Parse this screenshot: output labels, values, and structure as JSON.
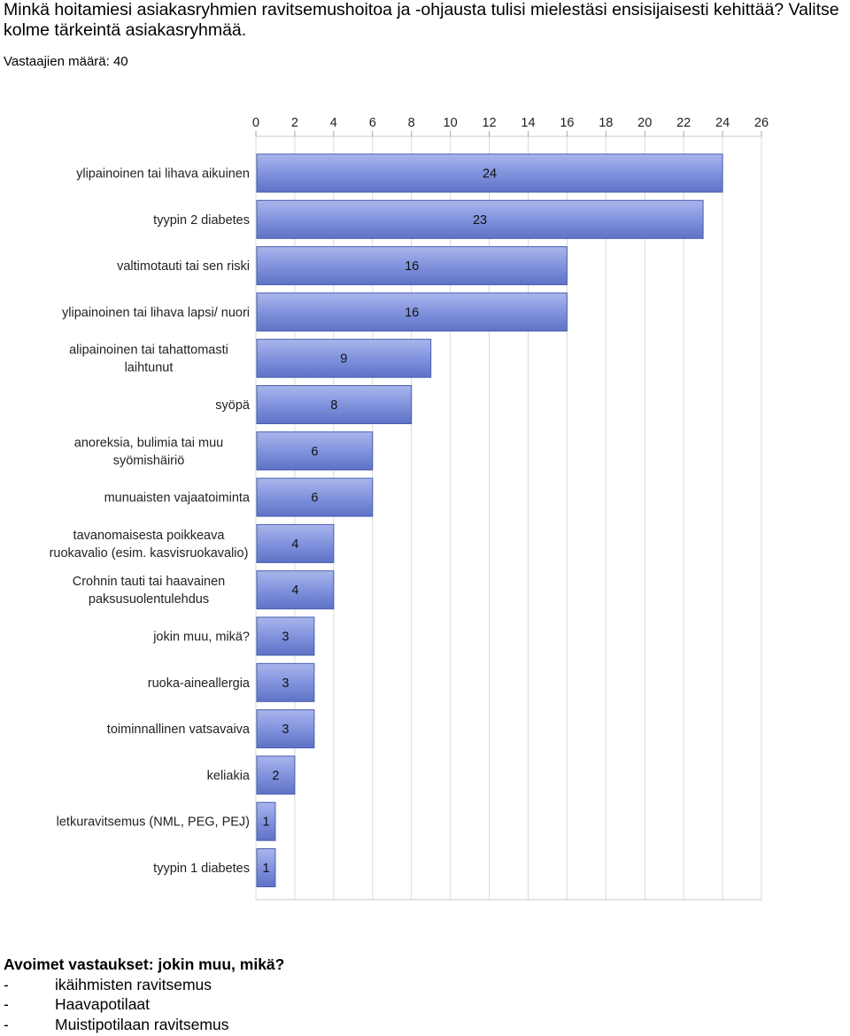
{
  "question": "Minkä hoitamiesi asiakasryhmien ravitsemushoitoa ja -ohjausta tulisi mielestäsi ensisijaisesti kehittää? Valitse kolme tärkeintä asiakasryhmää.",
  "respondents": "Vastaajien määrä: 40",
  "chart_data": {
    "type": "bar",
    "orientation": "horizontal",
    "categories": [
      "ylipainoinen tai lihava aikuinen",
      "tyypin 2 diabetes",
      "valtimotauti tai sen riski",
      "ylipainoinen tai lihava lapsi/ nuori",
      "alipainoinen tai tahattomasti laihtunut",
      "syöpä",
      "anoreksia, bulimia tai muu syömishäiriö",
      "munuaisten vajaatoiminta",
      "tavanomaisesta poikkeava ruokavalio (esim. kasvisruokavalio)",
      "Crohnin tauti tai haavainen paksusuolentulehdus",
      "jokin muu, mikä?",
      "ruoka-aineallergia",
      "toiminnallinen vatsavaiva",
      "keliakia",
      "letkuravitsemus (NML, PEG, PEJ)",
      "tyypin 1 diabetes"
    ],
    "category_lines": [
      [
        "ylipainoinen tai lihava aikuinen"
      ],
      [
        "tyypin 2 diabetes"
      ],
      [
        "valtimotauti tai sen riski"
      ],
      [
        "ylipainoinen tai lihava lapsi/ nuori"
      ],
      [
        "alipainoinen tai tahattomasti",
        "laihtunut"
      ],
      [
        "syöpä"
      ],
      [
        "anoreksia, bulimia tai muu",
        "syömishäiriö"
      ],
      [
        "munuaisten vajaatoiminta"
      ],
      [
        "tavanomaisesta poikkeava",
        "ruokavalio (esim. kasvisruokavalio)"
      ],
      [
        "Crohnin tauti tai haavainen",
        "paksusuolentulehdus"
      ],
      [
        "jokin muu, mikä?"
      ],
      [
        "ruoka-aineallergia"
      ],
      [
        "toiminnallinen vatsavaiva"
      ],
      [
        "keliakia"
      ],
      [
        "letkuravitsemus (NML, PEG, PEJ)"
      ],
      [
        "tyypin 1 diabetes"
      ]
    ],
    "values": [
      24,
      23,
      16,
      16,
      9,
      8,
      6,
      6,
      4,
      4,
      3,
      3,
      3,
      2,
      1,
      1
    ],
    "xlim": [
      0,
      26
    ],
    "xticks": [
      0,
      2,
      4,
      6,
      8,
      10,
      12,
      14,
      16,
      18,
      20,
      22,
      24,
      26
    ],
    "xticks_position": "top",
    "grid": true,
    "data_labels": true,
    "bar_color": "#7b8ed8",
    "bar_edge_color": "#4a5cb0",
    "grid_color": "#d9dcd2",
    "plot_bg": "#ffffff"
  },
  "open_answers": {
    "title": "Avoimet vastaukset: jokin muu, mikä?",
    "items": [
      {
        "dash": "-",
        "text": "ikäihmisten ravitsemus"
      },
      {
        "dash": "-",
        "text": "Haavapotilaat"
      },
      {
        "dash": "-",
        "text": "Muistipotilaan ravitsemus"
      }
    ]
  }
}
